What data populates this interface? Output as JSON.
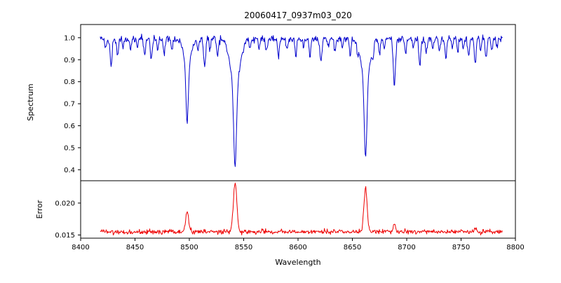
{
  "chart_data": {
    "type": "line",
    "title": "20060417_0937m03_020",
    "xlabel": "Wavelength",
    "xlim": [
      8400,
      8800
    ],
    "xticks": [
      8400,
      8450,
      8500,
      8550,
      8600,
      8650,
      8700,
      8750,
      8800
    ],
    "xtick_labels": [
      "8400",
      "8450",
      "8500",
      "8550",
      "8600",
      "8650",
      "8700",
      "8750",
      "8800"
    ],
    "x_data_range": [
      8418,
      8788
    ],
    "n_points": 740,
    "continuum": 0.995,
    "noise_sigma": 0.008,
    "panels": [
      {
        "ylabel": "Spectrum",
        "ylim": [
          0.35,
          1.06
        ],
        "yticks": [
          0.4,
          0.5,
          0.6,
          0.7,
          0.8,
          0.9,
          1.0
        ],
        "ytick_labels": [
          "0.4",
          "0.5",
          "0.6",
          "0.7",
          "0.8",
          "0.9",
          "1.0"
        ],
        "color": "#0000cc"
      },
      {
        "ylabel": "Error",
        "ylim": [
          0.0145,
          0.0235
        ],
        "yticks": [
          0.015,
          0.02
        ],
        "ytick_labels": [
          "0.015",
          "0.020"
        ],
        "color": "#ee0000"
      }
    ],
    "absorption_lines": [
      [
        8423,
        0.05,
        0.8
      ],
      [
        8428,
        0.12,
        0.9
      ],
      [
        8434,
        0.07,
        0.8
      ],
      [
        8439,
        0.04,
        0.7
      ],
      [
        8446,
        0.05,
        0.8
      ],
      [
        8452,
        0.04,
        0.7
      ],
      [
        8459,
        0.07,
        0.8
      ],
      [
        8465,
        0.09,
        0.9
      ],
      [
        8471,
        0.05,
        0.7
      ],
      [
        8477,
        0.07,
        0.8
      ],
      [
        8484,
        0.05,
        0.7
      ],
      [
        8498.02,
        0.27,
        1.1
      ],
      [
        8498.02,
        0.11,
        3.5
      ],
      [
        8508,
        0.05,
        0.7
      ],
      [
        8514,
        0.12,
        0.9
      ],
      [
        8519,
        0.05,
        0.7
      ],
      [
        8526,
        0.08,
        0.8
      ],
      [
        8542.09,
        0.38,
        1.3
      ],
      [
        8542.09,
        0.2,
        4.5
      ],
      [
        8556,
        0.04,
        0.7
      ],
      [
        8564,
        0.05,
        0.7
      ],
      [
        8571,
        0.06,
        0.8
      ],
      [
        8582,
        0.08,
        0.8
      ],
      [
        8590,
        0.04,
        0.7
      ],
      [
        8598,
        0.07,
        0.8
      ],
      [
        8605,
        0.04,
        0.7
      ],
      [
        8611,
        0.08,
        0.8
      ],
      [
        8621,
        0.1,
        0.9
      ],
      [
        8628,
        0.04,
        0.7
      ],
      [
        8634,
        0.06,
        0.8
      ],
      [
        8641,
        0.04,
        0.7
      ],
      [
        8648,
        0.07,
        0.8
      ],
      [
        8655,
        0.04,
        0.7
      ],
      [
        8662.14,
        0.36,
        1.2
      ],
      [
        8662.14,
        0.18,
        4.0
      ],
      [
        8669,
        0.05,
        0.7
      ],
      [
        8675,
        0.07,
        0.8
      ],
      [
        8679,
        0.04,
        0.7
      ],
      [
        8688.6,
        0.215,
        1.0
      ],
      [
        8699,
        0.06,
        0.8
      ],
      [
        8706,
        0.04,
        0.7
      ],
      [
        8712,
        0.12,
        0.9
      ],
      [
        8718,
        0.07,
        0.8
      ],
      [
        8724,
        0.04,
        0.7
      ],
      [
        8730,
        0.05,
        0.7
      ],
      [
        8736,
        0.09,
        0.8
      ],
      [
        8742,
        0.04,
        0.7
      ],
      [
        8747,
        0.06,
        0.7
      ],
      [
        8752,
        0.04,
        0.7
      ],
      [
        8757,
        0.08,
        0.8
      ],
      [
        8763,
        0.11,
        0.9
      ],
      [
        8768,
        0.05,
        0.7
      ],
      [
        8773,
        0.09,
        0.8
      ],
      [
        8778,
        0.05,
        0.7
      ],
      [
        8783,
        0.04,
        0.7
      ]
    ],
    "error": {
      "base": 0.0155,
      "noise_sigma": 0.00018,
      "peaks": [
        [
          8498.02,
          0.0033,
          1.3
        ],
        [
          8542.09,
          0.0077,
          1.6
        ],
        [
          8662.14,
          0.0068,
          1.5
        ],
        [
          8688.6,
          0.0013,
          1.0
        ],
        [
          8763,
          0.0007,
          0.9
        ]
      ]
    }
  }
}
